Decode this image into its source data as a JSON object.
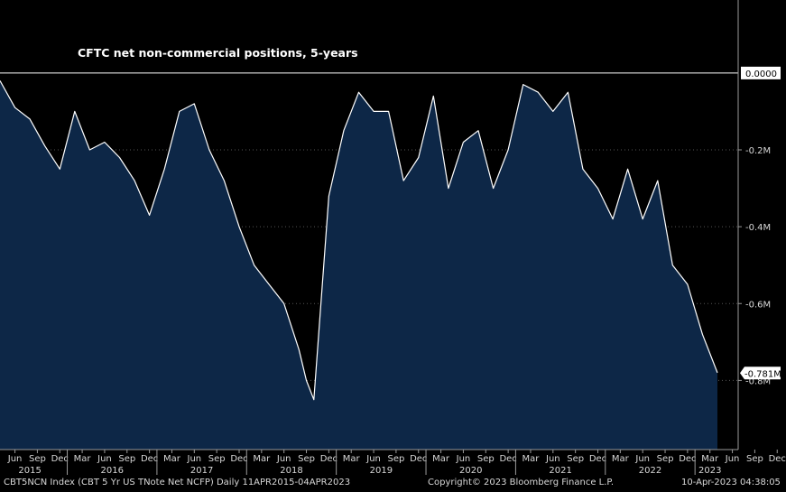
{
  "chart_data": {
    "type": "area",
    "title": "CFTC net non-commercial positions, 5-years",
    "unit": "M",
    "ylim": [
      -0.98,
      0.19
    ],
    "y_ticks": [
      {
        "value": 0,
        "label": "0.0000"
      },
      {
        "value": -0.2,
        "label": "-0.2M"
      },
      {
        "value": -0.4,
        "label": "-0.4M"
      },
      {
        "value": -0.6,
        "label": "-0.6M"
      },
      {
        "value": -0.8,
        "label": "-0.8M"
      }
    ],
    "last_value_label": "-0.781M",
    "last_value": -0.781,
    "month_labels": [
      "Jun",
      "Sep",
      "Dec",
      "Mar",
      "Jun",
      "Sep",
      "Dec",
      "Mar",
      "Jun",
      "Sep",
      "Dec",
      "Mar",
      "Jun",
      "Sep",
      "Dec",
      "Mar",
      "Jun",
      "Sep",
      "Dec",
      "Mar",
      "Jun",
      "Sep",
      "Dec",
      "Mar",
      "Jun",
      "Sep",
      "Dec",
      "Mar",
      "Jun",
      "Sep",
      "Dec",
      "Mar",
      "Jun",
      "Sep",
      "Dec",
      "Mar"
    ],
    "year_labels": [
      "2015",
      "2016",
      "2017",
      "2018",
      "2019",
      "2020",
      "2021",
      "2022",
      "2023"
    ],
    "x": [
      "2015-04",
      "2015-06",
      "2015-08",
      "2015-10",
      "2015-12",
      "2016-02",
      "2016-04",
      "2016-06",
      "2016-08",
      "2016-10",
      "2016-12",
      "2017-02",
      "2017-04",
      "2017-06",
      "2017-08",
      "2017-10",
      "2017-12",
      "2018-02",
      "2018-04",
      "2018-06",
      "2018-08",
      "2018-09",
      "2018-10",
      "2018-12",
      "2019-02",
      "2019-04",
      "2019-06",
      "2019-08",
      "2019-10",
      "2019-12",
      "2020-02",
      "2020-04",
      "2020-06",
      "2020-08",
      "2020-10",
      "2020-12",
      "2021-02",
      "2021-04",
      "2021-06",
      "2021-08",
      "2021-10",
      "2021-12",
      "2022-02",
      "2022-04",
      "2022-06",
      "2022-08",
      "2022-10",
      "2022-12",
      "2023-02",
      "2023-04"
    ],
    "series": [
      {
        "color": "#ffffff",
        "fill": "#0d2747",
        "values": [
          -0.02,
          -0.09,
          -0.12,
          -0.19,
          -0.25,
          -0.1,
          -0.2,
          -0.18,
          -0.22,
          -0.28,
          -0.37,
          -0.25,
          -0.1,
          -0.08,
          -0.2,
          -0.28,
          -0.4,
          -0.5,
          -0.55,
          -0.6,
          -0.72,
          -0.8,
          -0.85,
          -0.32,
          -0.15,
          -0.05,
          -0.1,
          -0.1,
          -0.28,
          -0.22,
          -0.06,
          -0.3,
          -0.18,
          -0.15,
          -0.3,
          -0.2,
          -0.03,
          -0.05,
          -0.1,
          -0.05,
          -0.25,
          -0.3,
          -0.38,
          -0.25,
          -0.38,
          -0.28,
          -0.5,
          -0.55,
          -0.68,
          -0.78
        ]
      }
    ],
    "grid": true,
    "legend": "none"
  },
  "footer": {
    "left": "CBT5NCN Index (CBT 5 Yr US TNote Net NCFP)  Daily 11APR2015-04APR2023",
    "center": "Copyright© 2023 Bloomberg Finance L.P.",
    "right": "10-Apr-2023 04:38:05"
  }
}
